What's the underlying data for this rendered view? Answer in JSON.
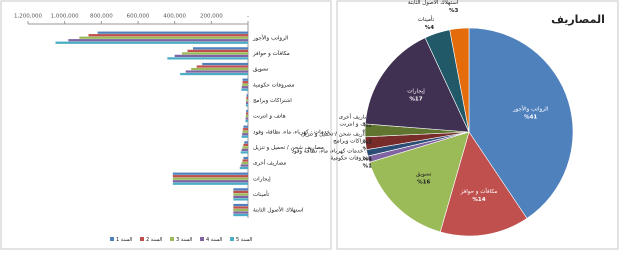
{
  "chart_data": [
    {
      "type": "hbar",
      "reversed": true,
      "categories": [
        "الرواتب والأجور",
        "مكافآت و حوافز",
        "تسويق",
        "مصروفات حكومية",
        "اشتراكات وبرامج",
        "هاتف و انترنت",
        "خدمات : كهرباء، ماء، نظافة، وقود ...",
        "مصاريف شحن / تحميل و تنزيل",
        "مصاريف أخرى",
        "إيجارات",
        "تأمينات",
        "استهلاك الأصول الثابتة"
      ],
      "series": [
        {
          "name": "السنة 1",
          "color": "#4f81bd",
          "values": [
            820000,
            300000,
            250000,
            30000,
            8000,
            10000,
            25000,
            20000,
            25000,
            410000,
            80000,
            80000
          ]
        },
        {
          "name": "السنة 2",
          "color": "#c0504d",
          "values": [
            870000,
            330000,
            280000,
            30000,
            9000,
            11000,
            28000,
            25000,
            30000,
            410000,
            80000,
            80000
          ]
        },
        {
          "name": "السنة 3",
          "color": "#9bbb59",
          "values": [
            920000,
            360000,
            310000,
            32000,
            10000,
            12000,
            30000,
            30000,
            35000,
            410000,
            80000,
            80000
          ]
        },
        {
          "name": "السنة 4",
          "color": "#8064a2",
          "values": [
            980000,
            400000,
            340000,
            34000,
            11000,
            13000,
            32000,
            35000,
            40000,
            410000,
            80000,
            80000
          ]
        },
        {
          "name": "السنة 5",
          "color": "#4bacc6",
          "values": [
            1050000,
            440000,
            370000,
            36000,
            12000,
            14000,
            35000,
            40000,
            45000,
            410000,
            80000,
            80000
          ]
        }
      ],
      "xlim": [
        0,
        1200000
      ],
      "xticks": [
        {
          "value": 1200000,
          "label": "1,200,000"
        },
        {
          "value": 1000000,
          "label": "1,000,000"
        },
        {
          "value": 800000,
          "label": "800,000"
        },
        {
          "value": 600000,
          "label": "600,000"
        },
        {
          "value": 400000,
          "label": "400,000"
        },
        {
          "value": 200000,
          "label": "200,000"
        },
        {
          "value": 0,
          "label": "-"
        }
      ],
      "legend": "bottom"
    },
    {
      "type": "pie",
      "title": "المصاريف",
      "categories": [
        "الرواتب والأجور",
        "مكافآت و حوافز",
        "تسويق",
        "مصروفات حكومية",
        "اشتراكات وبرامج",
        "هاتف و انترنت",
        "خدمات كهرباء، ماء، نظافة وقود ....",
        "مصاريف شحن / تحميل و تنزيل",
        "مصاريف أخرى",
        "إيجارات",
        "تأمينات",
        "استهلاك الأصول الثابتة"
      ],
      "values": [
        41,
        14,
        16,
        1,
        0,
        0,
        1,
        2,
        2,
        17,
        4,
        3
      ],
      "value_labels": [
        "%41",
        "%14",
        "%16",
        "%1",
        "%0",
        "%0",
        "%1",
        "%2",
        "%2",
        "%17",
        "%4",
        "%3"
      ],
      "colors": [
        "#4f81bd",
        "#c0504d",
        "#9bbb59",
        "#8064a2",
        "#4bacc6",
        "#f79646",
        "#2c4d75",
        "#772c2a",
        "#5f7530",
        "#403152",
        "#215968",
        "#e46c0a"
      ]
    }
  ]
}
